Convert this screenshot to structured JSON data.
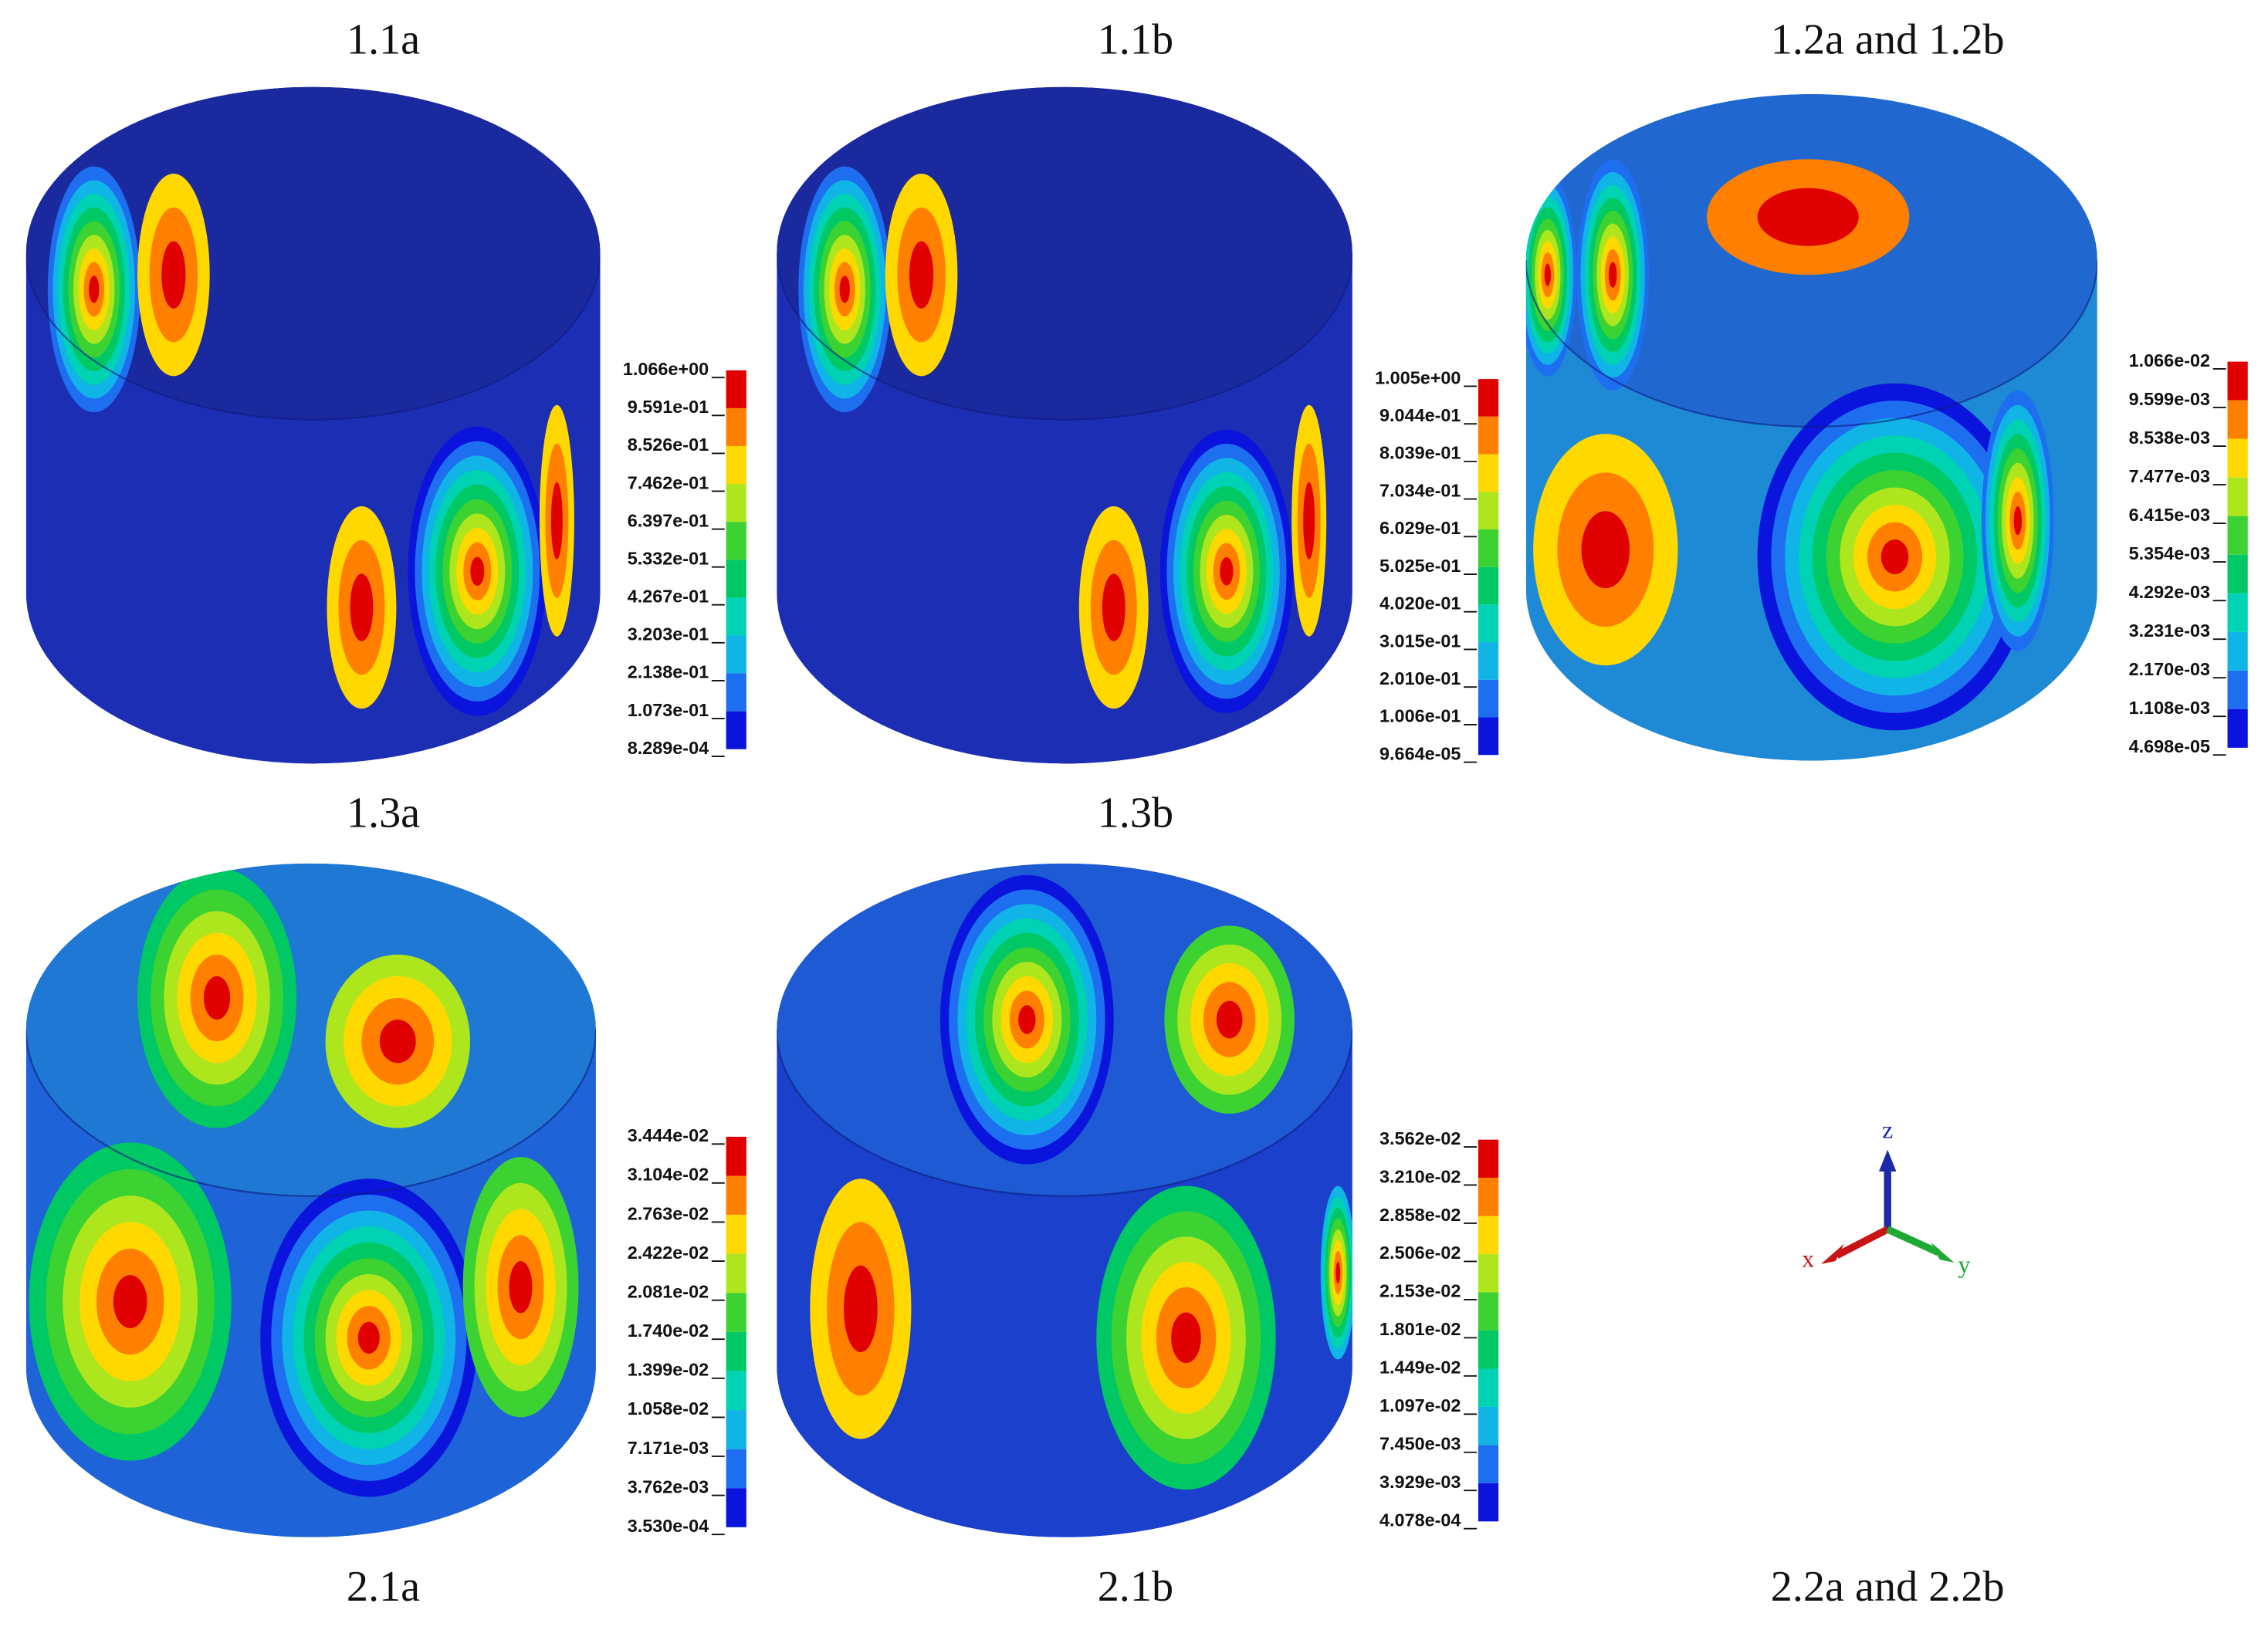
{
  "captions": [
    "1.1a",
    "1.1b",
    "1.2a and 1.2b",
    "1.3a",
    "1.3b",
    "2.1a",
    "2.1b",
    "2.2a and 2.2b"
  ],
  "legends": [
    [
      "1.066e+00",
      "9.591e-01",
      "8.526e-01",
      "7.462e-01",
      "6.397e-01",
      "5.332e-01",
      "4.267e-01",
      "3.203e-01",
      "2.138e-01",
      "1.073e-01",
      "8.289e-04"
    ],
    [
      "1.005e+00",
      "9.044e-01",
      "8.039e-01",
      "7.034e-01",
      "6.029e-01",
      "5.025e-01",
      "4.020e-01",
      "3.015e-01",
      "2.010e-01",
      "1.006e-01",
      "9.664e-05"
    ],
    [
      "1.066e-02",
      "9.599e-03",
      "8.538e-03",
      "7.477e-03",
      "6.415e-03",
      "5.354e-03",
      "4.292e-03",
      "3.231e-03",
      "2.170e-03",
      "1.108e-03",
      "4.698e-05"
    ],
    [
      "3.444e-02",
      "3.104e-02",
      "2.763e-02",
      "2.422e-02",
      "2.081e-02",
      "1.740e-02",
      "1.399e-02",
      "1.058e-02",
      "7.171e-03",
      "3.762e-03",
      "3.530e-04"
    ],
    [
      "3.562e-02",
      "3.210e-02",
      "2.858e-02",
      "2.506e-02",
      "2.153e-02",
      "1.801e-02",
      "1.449e-02",
      "1.097e-02",
      "7.450e-03",
      "3.929e-03",
      "4.078e-04"
    ]
  ],
  "axes": {
    "x": "x",
    "y": "y",
    "z": "z"
  }
}
